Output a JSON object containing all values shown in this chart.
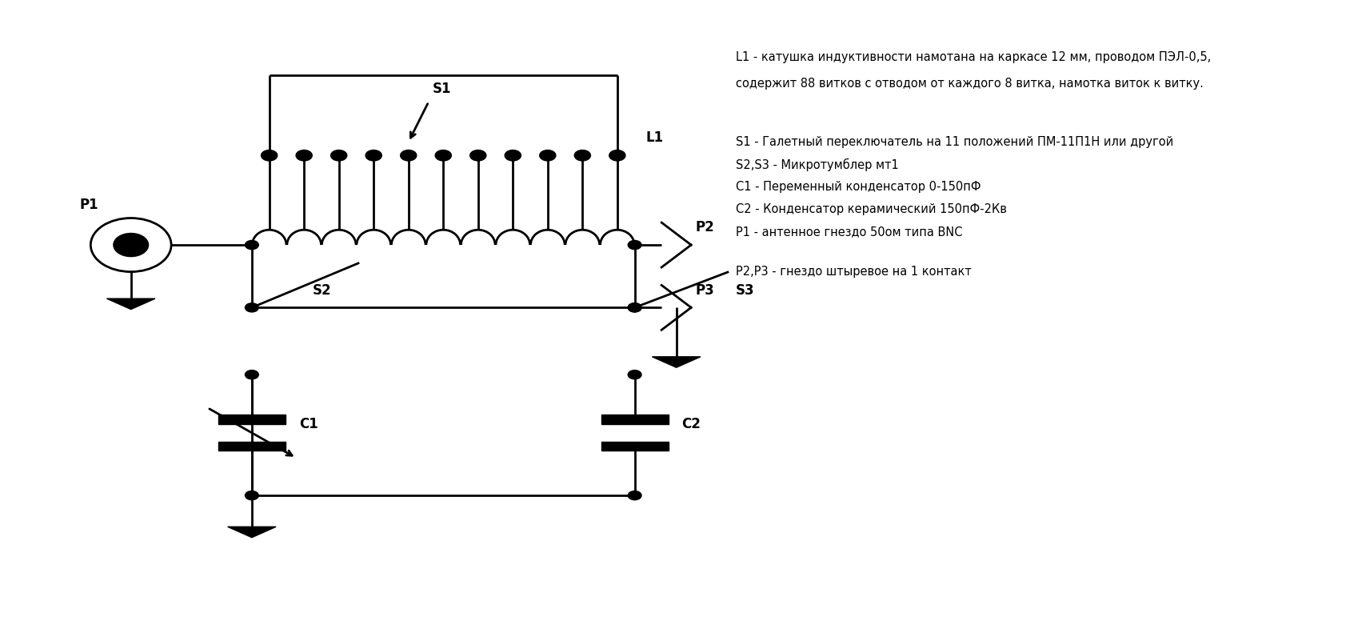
{
  "bg_color": "#ffffff",
  "lc": "#000000",
  "lw": 2.0,
  "annotations": [
    "L1 - катушка индуктивности намотана на каркасе 12 мм, проводом ПЭЛ-0,5,",
    "содержит 88 витков с отводом от каждого 8 витка, намотка виток к витку.",
    "",
    "S1 - Галетный переключатель на 11 положений ПМ-11П1Н или другой",
    "S2,S3 - Микротумблер мт1",
    "С1 - Переменный конденсатор 0-150пФ",
    "С2 - Конденсатор керамический 150пФ-2Кв",
    "Р1 - антенное гнездо 50ом типа BNC",
    "Р2,Р3 - гнездо штыревое на 1 контакт"
  ]
}
